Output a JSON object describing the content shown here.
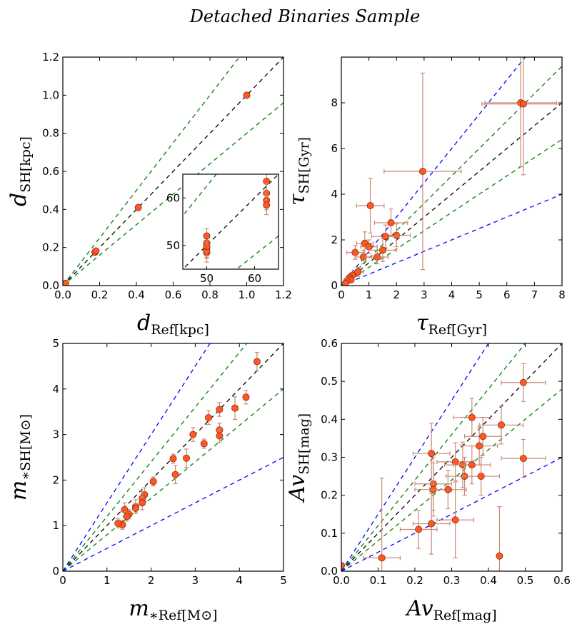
{
  "figure": {
    "title": "Detached Binaries Sample"
  },
  "chart_data": [
    {
      "id": "distance",
      "type": "scatter",
      "title": "",
      "xlabel_main": "d",
      "xlabel_sub": "Ref[kpc]",
      "ylabel_main": "d",
      "ylabel_sub": "SH[kpc]",
      "xlim": [
        0,
        1.2
      ],
      "ylim": [
        0,
        1.2
      ],
      "xticks": [
        "0.0",
        "0.2",
        "0.4",
        "0.6",
        "0.8",
        "1.0",
        "1.2"
      ],
      "yticks": [
        "0.0",
        "0.2",
        "0.4",
        "0.6",
        "0.8",
        "1.0",
        "1.2"
      ],
      "reference_lines": [
        {
          "slope": 1.0,
          "color": "#000000"
        },
        {
          "slope": 1.25,
          "color": "#008000"
        },
        {
          "slope": 0.8,
          "color": "#008000"
        }
      ],
      "points": [
        {
          "x": 0.01,
          "y": 0.01
        },
        {
          "x": 0.012,
          "y": 0.008
        },
        {
          "x": 0.015,
          "y": 0.012
        },
        {
          "x": 0.175,
          "y": 0.175
        },
        {
          "x": 0.18,
          "y": 0.182
        },
        {
          "x": 0.41,
          "y": 0.41
        },
        {
          "x": 1.0,
          "y": 1.0
        }
      ],
      "inset": {
        "xlim": [
          45,
          65
        ],
        "ylim": [
          45,
          65
        ],
        "xticks": [
          "50",
          "60"
        ],
        "yticks": [
          "50",
          "60"
        ],
        "reference_lines": [
          {
            "slope": 1.0,
            "color": "#000000"
          },
          {
            "slope": 1.25,
            "color": "#008000"
          },
          {
            "slope": 0.8,
            "color": "#008000"
          }
        ],
        "points": [
          {
            "x": 50,
            "y": 49.5,
            "yerr": 2
          },
          {
            "x": 50,
            "y": 48.5,
            "yerr": 2
          },
          {
            "x": 50,
            "y": 50.5,
            "yerr": 1.5
          },
          {
            "x": 50,
            "y": 48.8,
            "yerr": 1.5
          },
          {
            "x": 50,
            "y": 49.8,
            "yerr": 2
          },
          {
            "x": 50,
            "y": 52,
            "yerr": 1.5
          },
          {
            "x": 62.5,
            "y": 63.5,
            "yerr": 2
          },
          {
            "x": 62.5,
            "y": 61,
            "yerr": 2
          },
          {
            "x": 62.5,
            "y": 59.5,
            "yerr": 2
          },
          {
            "x": 62.5,
            "y": 58.5,
            "yerr": 2
          }
        ]
      }
    },
    {
      "id": "age",
      "type": "scatter",
      "title": "",
      "xlabel_main": "τ",
      "xlabel_sub": "Ref[Gyr]",
      "ylabel_main": "τ",
      "ylabel_sub": "SH[Gyr]",
      "xlim": [
        0,
        8
      ],
      "ylim": [
        0,
        10
      ],
      "xticks": [
        "0",
        "1",
        "2",
        "3",
        "4",
        "5",
        "6",
        "7",
        "8"
      ],
      "yticks": [
        "0",
        "2",
        "4",
        "6",
        "8"
      ],
      "reference_lines": [
        {
          "slope": 1.0,
          "color": "#000000"
        },
        {
          "slope": 1.2,
          "color": "#008000"
        },
        {
          "slope": 0.8,
          "color": "#008000"
        },
        {
          "slope": 1.5,
          "color": "#0000ff"
        },
        {
          "slope": 0.5,
          "color": "#0000ff"
        }
      ],
      "points": [
        {
          "x": 6.5,
          "y": 8.0,
          "xerr": 1.3,
          "yerr": 2.8
        },
        {
          "x": 6.6,
          "y": 7.95,
          "xerr": 1.5,
          "yerr": 3.1
        },
        {
          "x": 2.95,
          "y": 5.0,
          "xerr": 1.4,
          "yerr": 4.3
        },
        {
          "x": 1.05,
          "y": 3.5,
          "xerr": 0.5,
          "yerr": 1.2
        },
        {
          "x": 1.8,
          "y": 2.75,
          "xerr": 0.6,
          "yerr": 0.6
        },
        {
          "x": 2.0,
          "y": 2.2,
          "xerr": 0.5,
          "yerr": 0.5
        },
        {
          "x": 1.6,
          "y": 2.15,
          "xerr": 0.5,
          "yerr": 0.5
        },
        {
          "x": 0.85,
          "y": 1.85,
          "xerr": 0.3,
          "yerr": 0.5
        },
        {
          "x": 1.0,
          "y": 1.7,
          "xerr": 0.3,
          "yerr": 0.3
        },
        {
          "x": 0.5,
          "y": 1.45,
          "xerr": 0.3,
          "yerr": 0.3
        },
        {
          "x": 1.5,
          "y": 1.55,
          "xerr": 0.5,
          "yerr": 0.5
        },
        {
          "x": 0.8,
          "y": 1.25,
          "xerr": 0.3,
          "yerr": 0.3
        },
        {
          "x": 1.3,
          "y": 1.25,
          "xerr": 0.4,
          "yerr": 0.3
        },
        {
          "x": 0.6,
          "y": 0.6,
          "xerr": 0.2,
          "yerr": 0.2
        },
        {
          "x": 0.4,
          "y": 0.45,
          "xerr": 0.1,
          "yerr": 0.1
        },
        {
          "x": 0.3,
          "y": 0.35,
          "xerr": 0.1,
          "yerr": 0.1
        },
        {
          "x": 0.35,
          "y": 0.25,
          "xerr": 0.1,
          "yerr": 0.1
        },
        {
          "x": 0.2,
          "y": 0.2,
          "xerr": 0.05,
          "yerr": 0.05
        },
        {
          "x": 0.15,
          "y": 0.1,
          "xerr": 0.05,
          "yerr": 0.05
        }
      ]
    },
    {
      "id": "mass",
      "type": "scatter",
      "title": "",
      "xlabel_main": "m",
      "xlabel_sub": "∗Ref[M⊙]",
      "ylabel_main": "m",
      "ylabel_sub": "∗SH[M⊙]",
      "xlim": [
        0,
        5
      ],
      "ylim": [
        0,
        5
      ],
      "xticks": [
        "0",
        "1",
        "2",
        "3",
        "4",
        "5"
      ],
      "yticks": [
        "0",
        "1",
        "2",
        "3",
        "4",
        "5"
      ],
      "reference_lines": [
        {
          "slope": 1.0,
          "color": "#000000"
        },
        {
          "slope": 1.2,
          "color": "#008000"
        },
        {
          "slope": 0.8,
          "color": "#008000"
        },
        {
          "slope": 1.5,
          "color": "#0000ff"
        },
        {
          "slope": 0.5,
          "color": "#0000ff"
        }
      ],
      "points": [
        {
          "x": 4.4,
          "y": 4.6,
          "yerr": 0.2
        },
        {
          "x": 4.15,
          "y": 3.82,
          "yerr": 0.15
        },
        {
          "x": 3.9,
          "y": 3.58,
          "yerr": 0.25
        },
        {
          "x": 3.55,
          "y": 3.55,
          "yerr": 0.15
        },
        {
          "x": 3.55,
          "y": 3.1,
          "yerr": 0.15
        },
        {
          "x": 3.55,
          "y": 2.97,
          "yerr": 0.15
        },
        {
          "x": 3.3,
          "y": 3.37,
          "yerr": 0.15
        },
        {
          "x": 3.2,
          "y": 2.8,
          "yerr": 0.1
        },
        {
          "x": 2.95,
          "y": 3.0,
          "yerr": 0.15
        },
        {
          "x": 2.8,
          "y": 2.48,
          "yerr": 0.2
        },
        {
          "x": 2.5,
          "y": 2.47,
          "yerr": 0.1
        },
        {
          "x": 2.55,
          "y": 2.12,
          "yerr": 0.2
        },
        {
          "x": 2.05,
          "y": 1.97,
          "yerr": 0.1
        },
        {
          "x": 1.85,
          "y": 1.68,
          "yerr": 0.15
        },
        {
          "x": 1.8,
          "y": 1.6,
          "yerr": 0.15
        },
        {
          "x": 1.8,
          "y": 1.5,
          "yerr": 0.15
        },
        {
          "x": 1.65,
          "y": 1.42,
          "yerr": 0.15
        },
        {
          "x": 1.65,
          "y": 1.38,
          "yerr": 0.1
        },
        {
          "x": 1.5,
          "y": 1.25,
          "yerr": 0.1
        },
        {
          "x": 1.4,
          "y": 1.35,
          "yerr": 0.15
        },
        {
          "x": 1.45,
          "y": 1.2,
          "yerr": 0.1
        },
        {
          "x": 1.35,
          "y": 1.02,
          "yerr": 0.1
        },
        {
          "x": 1.25,
          "y": 1.05,
          "yerr": 0.1
        }
      ]
    },
    {
      "id": "extinction",
      "type": "scatter",
      "title": "",
      "xlabel_main": "Av",
      "xlabel_sub": "Ref[mag]",
      "ylabel_main": "Av",
      "ylabel_sub": "SH[mag]",
      "xlim": [
        0,
        0.6
      ],
      "ylim": [
        0,
        0.6
      ],
      "xticks": [
        "0.0",
        "0.1",
        "0.2",
        "0.3",
        "0.4",
        "0.5",
        "0.6"
      ],
      "yticks": [
        "0.0",
        "0.1",
        "0.2",
        "0.3",
        "0.4",
        "0.5",
        "0.6"
      ],
      "reference_lines": [
        {
          "slope": 1.0,
          "color": "#000000"
        },
        {
          "slope": 1.2,
          "color": "#008000"
        },
        {
          "slope": 0.8,
          "color": "#008000"
        },
        {
          "slope": 1.5,
          "color": "#0000ff"
        },
        {
          "slope": 0.5,
          "color": "#0000ff"
        }
      ],
      "points": [
        {
          "x": 0.0,
          "y": 0.015,
          "xerr": 0.0,
          "yerr": 0.0
        },
        {
          "x": 0.11,
          "y": 0.035,
          "xerr": 0.05,
          "yerr": 0.21
        },
        {
          "x": 0.21,
          "y": 0.11,
          "xerr": 0.05,
          "yerr": 0.05
        },
        {
          "x": 0.245,
          "y": 0.125,
          "xerr": 0.05,
          "yerr": 0.08
        },
        {
          "x": 0.25,
          "y": 0.23,
          "xerr": 0.05,
          "yerr": 0.07
        },
        {
          "x": 0.25,
          "y": 0.215,
          "xerr": 0.05,
          "yerr": 0.07
        },
        {
          "x": 0.245,
          "y": 0.31,
          "xerr": 0.05,
          "yerr": 0.08
        },
        {
          "x": 0.29,
          "y": 0.215,
          "xerr": 0.05,
          "yerr": 0.05
        },
        {
          "x": 0.31,
          "y": 0.135,
          "xerr": 0.05,
          "yerr": 0.1
        },
        {
          "x": 0.31,
          "y": 0.288,
          "xerr": 0.05,
          "yerr": 0.05
        },
        {
          "x": 0.33,
          "y": 0.28,
          "xerr": 0.05,
          "yerr": 0.06
        },
        {
          "x": 0.335,
          "y": 0.25,
          "xerr": 0.05,
          "yerr": 0.05
        },
        {
          "x": 0.355,
          "y": 0.405,
          "xerr": 0.05,
          "yerr": 0.05
        },
        {
          "x": 0.355,
          "y": 0.28,
          "xerr": 0.05,
          "yerr": 0.05
        },
        {
          "x": 0.375,
          "y": 0.33,
          "xerr": 0.05,
          "yerr": 0.05
        },
        {
          "x": 0.38,
          "y": 0.25,
          "xerr": 0.05,
          "yerr": 0.05
        },
        {
          "x": 0.385,
          "y": 0.355,
          "xerr": 0.05,
          "yerr": 0.05
        },
        {
          "x": 0.435,
          "y": 0.385,
          "xerr": 0.06,
          "yerr": 0.05
        },
        {
          "x": 0.495,
          "y": 0.497,
          "xerr": 0.06,
          "yerr": 0.05
        },
        {
          "x": 0.495,
          "y": 0.297,
          "xerr": 0.06,
          "yerr": 0.05
        },
        {
          "x": 0.43,
          "y": 0.04,
          "xerr": 0.0,
          "yerr": 0.13
        }
      ]
    }
  ],
  "colors": {
    "marker_fill": "#ff5722",
    "marker_edge": "#8b2e12",
    "errorbar": "#c98a76",
    "axis": "#000000"
  }
}
